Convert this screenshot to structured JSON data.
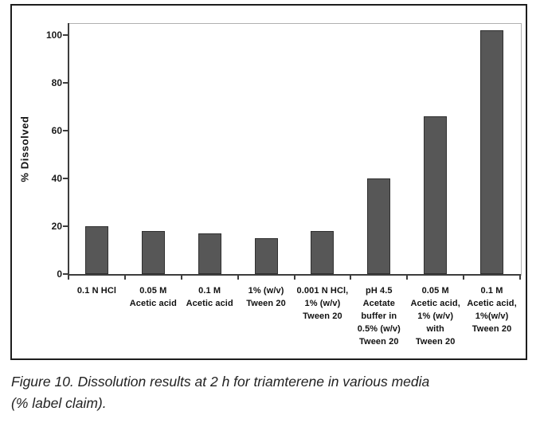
{
  "figure": {
    "caption_line1": "Figure 10. Dissolution results at 2 h for triamterene in various media",
    "caption_line2": "(% label claim)."
  },
  "chart_data": {
    "type": "bar",
    "title": "",
    "xlabel": "",
    "ylabel": "% Dissolved",
    "ylim": [
      0,
      105
    ],
    "yticks": [
      0,
      20,
      40,
      60,
      80,
      100
    ],
    "grid": false,
    "legend": "none",
    "bar_color": "#575757",
    "categories": [
      "0.1 N HCl",
      "0.05 M Acetic acid",
      "0.1 M Acetic acid",
      "1% (w/v) Tween 20",
      "0.001 N HCl, 1% (w/v) Tween 20",
      "pH 4.5 Acetate buffer in 0.5% (w/v) Tween 20",
      "0.05 M Acetic acid, 1% (w/v) with Tween 20",
      "0.1 M Acetic acid, 1%(w/v) Tween 20"
    ],
    "category_lines": [
      [
        "0.1 N HCl"
      ],
      [
        "0.05 M",
        "Acetic acid"
      ],
      [
        "0.1 M",
        "Acetic acid"
      ],
      [
        "1% (w/v)",
        "Tween 20"
      ],
      [
        "0.001 N HCl,",
        "1% (w/v)",
        "Tween 20"
      ],
      [
        "pH 4.5",
        "Acetate",
        "buffer in",
        "0.5% (w/v)",
        "Tween 20"
      ],
      [
        "0.05 M",
        "Acetic acid,",
        "1% (w/v)",
        "with",
        "Tween 20"
      ],
      [
        "0.1 M",
        "Acetic acid,",
        "1%(w/v)",
        "Tween 20"
      ]
    ],
    "values": [
      20,
      18,
      17,
      15,
      18,
      40,
      66,
      102
    ]
  }
}
